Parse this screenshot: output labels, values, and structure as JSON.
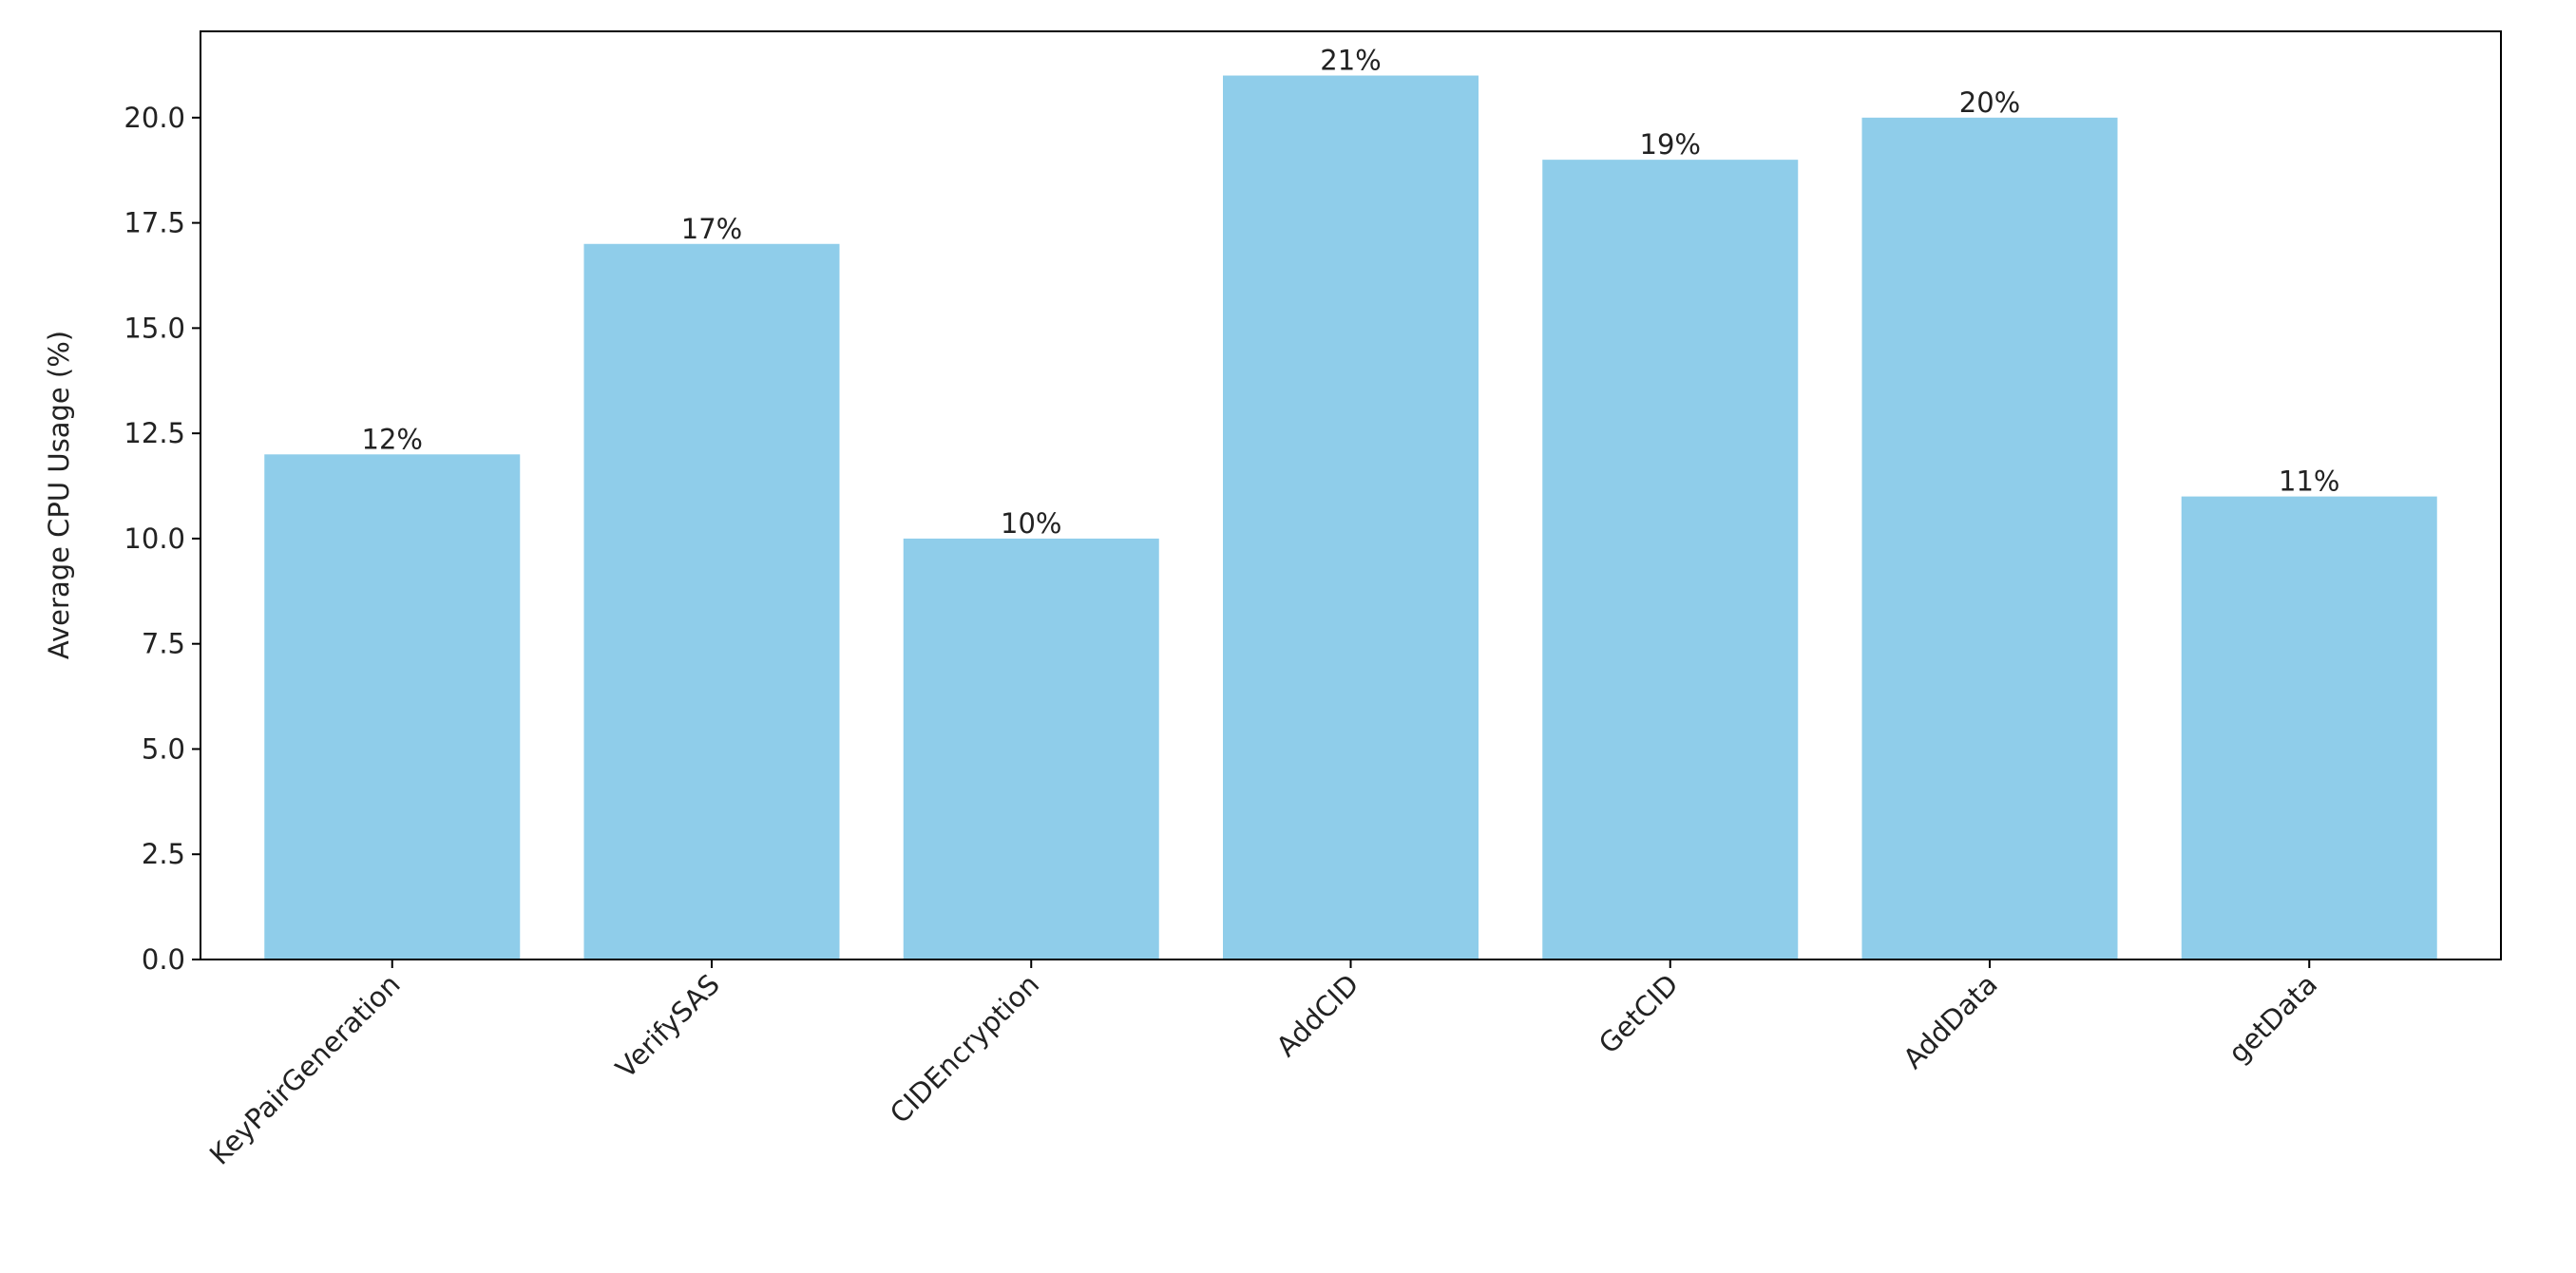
{
  "chart_data": {
    "type": "bar",
    "y_label": "Average CPU Usage (%)",
    "categories": [
      "KeyPairGeneration",
      "VerifySAS",
      "CIDEncryption",
      "AddCID",
      "GetCID",
      "AddData",
      "getData"
    ],
    "values": [
      12,
      17,
      10,
      21,
      19,
      20,
      11
    ],
    "value_labels": [
      "12%",
      "17%",
      "10%",
      "21%",
      "19%",
      "20%",
      "11%"
    ],
    "color": "#8fcdea",
    "ylim": [
      0,
      22.05
    ],
    "yticks": [
      {
        "value": 0,
        "label": "0.0"
      },
      2.5,
      {
        "value": 5,
        "label": "5.0"
      },
      7.5,
      {
        "value": 10,
        "label": "10.0"
      },
      12.5,
      {
        "value": 15,
        "label": "15.0"
      },
      17.5,
      {
        "value": 20,
        "label": "20.0"
      }
    ],
    "grid": false
  }
}
